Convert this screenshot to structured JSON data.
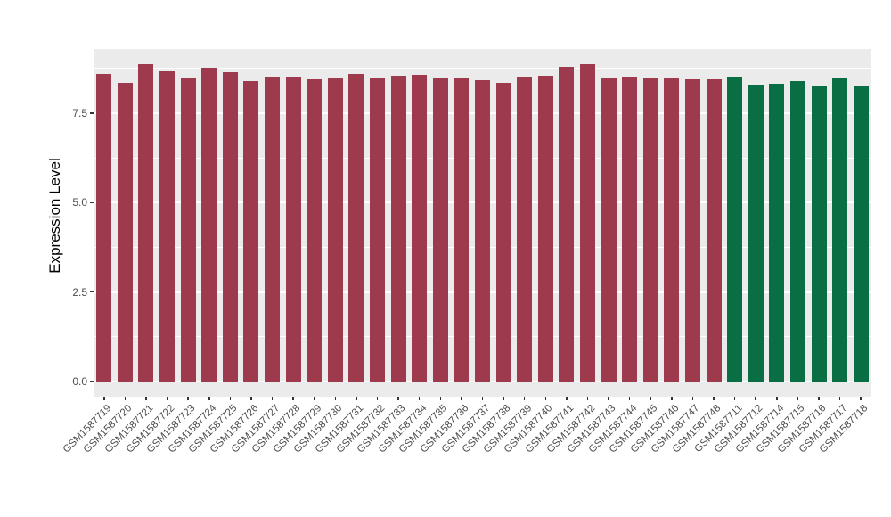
{
  "figure": {
    "background": "#FFFFFF",
    "panel_background": "#EBEBEB",
    "grid_color": "#FFFFFF",
    "axis_text_color": "#4D4D4D",
    "tick_mark_color": "#333333"
  },
  "chart_data": {
    "type": "bar",
    "title": "",
    "xlabel": "",
    "ylabel": "Expression Level",
    "legend": "none",
    "grid": true,
    "ylim": [
      0,
      9.3
    ],
    "yticks": [
      {
        "value": 0,
        "label": "0.0"
      },
      {
        "value": 2.5,
        "label": "2.5"
      },
      {
        "value": 5,
        "label": "5.0"
      },
      {
        "value": 7.5,
        "label": "7.5"
      }
    ],
    "minor_gridlines": [
      1.25,
      3.75,
      6.25,
      8.75
    ],
    "categories": [
      "GSM1587719",
      "GSM1587720",
      "GSM1587721",
      "GSM1587722",
      "GSM1587723",
      "GSM1587724",
      "GSM1587725",
      "GSM1587726",
      "GSM1587727",
      "GSM1587728",
      "GSM1587729",
      "GSM1587730",
      "GSM1587731",
      "GSM1587732",
      "GSM1587733",
      "GSM1587734",
      "GSM1587735",
      "GSM1587736",
      "GSM1587737",
      "GSM1587738",
      "GSM1587739",
      "GSM1587740",
      "GSM1587741",
      "GSM1587742",
      "GSM1587743",
      "GSM1587744",
      "GSM1587745",
      "GSM1587746",
      "GSM1587747",
      "GSM1587748",
      "GSM1587711",
      "GSM1587712",
      "GSM1587714",
      "GSM1587715",
      "GSM1587716",
      "GSM1587717",
      "GSM1587718"
    ],
    "values": [
      8.6,
      8.35,
      8.87,
      8.67,
      8.5,
      8.77,
      8.65,
      8.4,
      8.52,
      8.52,
      8.45,
      8.47,
      8.6,
      8.47,
      8.55,
      8.57,
      8.5,
      8.5,
      8.42,
      8.35,
      8.52,
      8.55,
      8.8,
      8.87,
      8.5,
      8.52,
      8.5,
      8.47,
      8.45,
      8.45,
      8.52,
      8.3,
      8.32,
      8.4,
      8.25,
      8.47,
      8.25
    ],
    "groups": [
      {
        "color": "#9E3A4E",
        "start": 0,
        "count": 30
      },
      {
        "color": "#096E43",
        "start": 30,
        "count": 7
      }
    ]
  }
}
